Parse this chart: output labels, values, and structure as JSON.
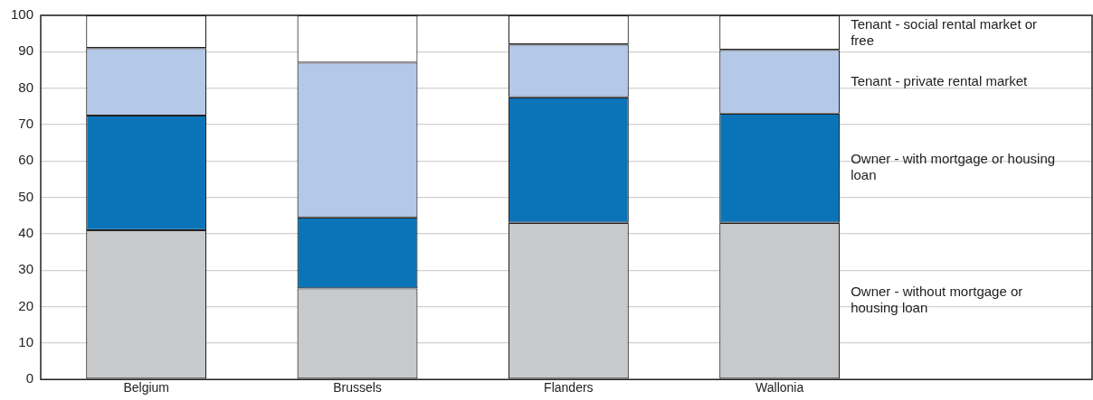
{
  "chart_data": {
    "type": "bar",
    "stacked": true,
    "categories": [
      "Belgium",
      "Brussels",
      "Flanders",
      "Wallonia"
    ],
    "series": [
      {
        "name": "Owner - without mortgage or housing loan",
        "color": "#c8c9cb",
        "values": [
          41,
          25,
          43,
          43
        ]
      },
      {
        "name": "Owner - with mortgage or housing loan",
        "color": "#0b74b9",
        "values": [
          31.5,
          19.5,
          34.5,
          30
        ]
      },
      {
        "name": "Tenant - private rental market",
        "color": "#b4c8e8",
        "values": [
          18.5,
          42.5,
          14.5,
          17.5
        ]
      },
      {
        "name": "Tenant - social rental market or free",
        "color": "#ffffff",
        "values": [
          9,
          13,
          8,
          9.5
        ]
      }
    ],
    "ylim": [
      0,
      100
    ],
    "yticks": [
      0,
      10,
      20,
      30,
      40,
      50,
      60,
      70,
      80,
      90,
      100
    ],
    "grid": "y"
  }
}
